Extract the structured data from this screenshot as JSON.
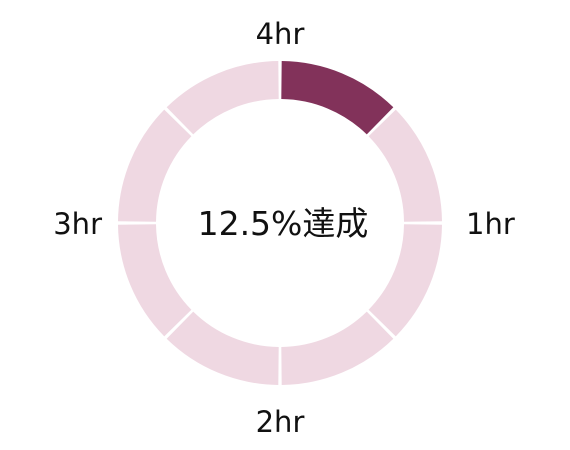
{
  "chart_data": {
    "type": "pie",
    "style": "donut",
    "segments": 8,
    "completed_segments": 1,
    "completed_fraction": 0.125,
    "center_text": "12.5%達成",
    "tick_labels": [
      {
        "id": "top",
        "text": "4hr"
      },
      {
        "id": "right",
        "text": "1hr"
      },
      {
        "id": "bottom",
        "text": "2hr"
      },
      {
        "id": "left",
        "text": "3hr"
      }
    ],
    "colors": {
      "completed": "#82325a",
      "remaining": "#efd8e2",
      "gap": "#ffffff"
    }
  }
}
